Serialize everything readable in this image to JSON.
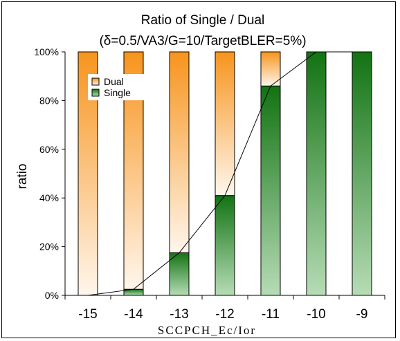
{
  "chart_data": {
    "type": "bar",
    "stacked": true,
    "percent": true,
    "title": "Ratio of Single / Dual",
    "subtitle": "(δ=0.5/VA3/G=10/TargetBLER=5%)",
    "xlabel": "SCCPCH_Ec/Ior",
    "ylabel": "ratio",
    "categories": [
      "-15",
      "-14",
      "-13",
      "-12",
      "-11",
      "-10",
      "-9"
    ],
    "yticks": [
      "0%",
      "20%",
      "40%",
      "60%",
      "80%",
      "100%"
    ],
    "ylim": [
      0,
      100
    ],
    "series": [
      {
        "name": "Single",
        "color": "#1a7a1a",
        "values": [
          0,
          2.5,
          17.5,
          41,
          86,
          100,
          100
        ]
      },
      {
        "name": "Dual",
        "color": "#f7941d",
        "values": [
          100,
          97.5,
          82.5,
          59,
          14,
          0,
          0
        ]
      }
    ],
    "line_overlay": {
      "series": "Single",
      "style": "connects tops of Single segments"
    },
    "legend": {
      "position": "top-left",
      "entries": [
        "Dual",
        "Single"
      ]
    },
    "grid": false
  }
}
